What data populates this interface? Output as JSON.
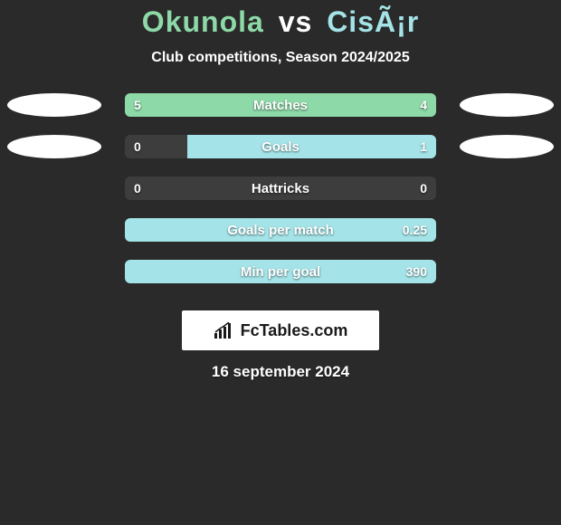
{
  "title": {
    "player1": "Okunola",
    "vs": "vs",
    "player2": "CisÃ¡r"
  },
  "subtitle": "Club competitions, Season 2024/2025",
  "date": "16 september 2024",
  "logo": "FcTables.com",
  "colors": {
    "p1": "#8dd9a8",
    "p2": "#a4e4e8",
    "bar_bg": "#3d3d3d",
    "ellipse_neutral": "#ffffff",
    "text": "#ffffff",
    "background": "#2a2a2a"
  },
  "metrics": [
    {
      "label": "Matches",
      "left_value": "5",
      "right_value": "4",
      "left_num": 5,
      "right_num": 4,
      "fill_color": "#8dd9a8",
      "fill_side": "full",
      "ellipse_left": "#ffffff",
      "ellipse_right": "#ffffff"
    },
    {
      "label": "Goals",
      "left_value": "0",
      "right_value": "1",
      "left_num": 0,
      "right_num": 1,
      "fill_color": "#a4e4e8",
      "fill_side": "right",
      "fill_pct": 80,
      "ellipse_left": "#ffffff",
      "ellipse_right": "#ffffff"
    },
    {
      "label": "Hattricks",
      "left_value": "0",
      "right_value": "0",
      "left_num": 0,
      "right_num": 0,
      "fill_color": null,
      "fill_side": "none",
      "ellipse_left": null,
      "ellipse_right": null
    },
    {
      "label": "Goals per match",
      "left_value": "",
      "right_value": "0.25",
      "left_num": 0,
      "right_num": 0.25,
      "fill_color": "#a4e4e8",
      "fill_side": "full",
      "ellipse_left": null,
      "ellipse_right": null
    },
    {
      "label": "Min per goal",
      "left_value": "",
      "right_value": "390",
      "left_num": 0,
      "right_num": 390,
      "fill_color": "#a4e4e8",
      "fill_side": "full",
      "ellipse_left": null,
      "ellipse_right": null
    }
  ]
}
